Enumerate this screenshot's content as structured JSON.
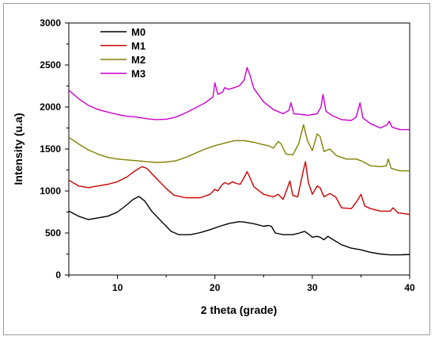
{
  "chart_data": {
    "type": "line",
    "xlabel": "2 theta (grade)",
    "ylabel": "Intensity (u.a)",
    "xlim": [
      5,
      40
    ],
    "ylim": [
      0,
      3000
    ],
    "x_ticks": [
      10,
      20,
      30,
      40
    ],
    "y_ticks": [
      0,
      500,
      1000,
      1500,
      2000,
      2500,
      3000
    ],
    "x_tick_labels": [
      "10",
      "20",
      "30",
      "40"
    ],
    "y_tick_labels": [
      "0",
      "500",
      "1000",
      "1500",
      "2000",
      "2500",
      "3000"
    ],
    "grid": false,
    "legend": "top-left",
    "series": [
      {
        "name": "M0",
        "color": "#000000",
        "points": [
          [
            5,
            760
          ],
          [
            6,
            700
          ],
          [
            7,
            660
          ],
          [
            8,
            680
          ],
          [
            9,
            700
          ],
          [
            10,
            750
          ],
          [
            11,
            840
          ],
          [
            11.6,
            900
          ],
          [
            12.2,
            935
          ],
          [
            12.8,
            880
          ],
          [
            13.5,
            760
          ],
          [
            14.5,
            640
          ],
          [
            15.5,
            520
          ],
          [
            16.3,
            480
          ],
          [
            17.5,
            480
          ],
          [
            18.5,
            505
          ],
          [
            19.5,
            540
          ],
          [
            20.5,
            580
          ],
          [
            21.5,
            615
          ],
          [
            22.5,
            635
          ],
          [
            23,
            630
          ],
          [
            24,
            610
          ],
          [
            25,
            580
          ],
          [
            25.5,
            590
          ],
          [
            25.8,
            580
          ],
          [
            26.2,
            500
          ],
          [
            27,
            480
          ],
          [
            28,
            480
          ],
          [
            28.7,
            500
          ],
          [
            29.2,
            520
          ],
          [
            29.6,
            490
          ],
          [
            30,
            450
          ],
          [
            30.5,
            460
          ],
          [
            30.8,
            450
          ],
          [
            31.2,
            420
          ],
          [
            31.6,
            460
          ],
          [
            32,
            430
          ],
          [
            33,
            360
          ],
          [
            34,
            320
          ],
          [
            35,
            300
          ],
          [
            36,
            270
          ],
          [
            37,
            250
          ],
          [
            38,
            240
          ],
          [
            39,
            240
          ],
          [
            40,
            245
          ]
        ]
      },
      {
        "name": "M1",
        "color": "#cc0000",
        "points": [
          [
            5,
            1130
          ],
          [
            6,
            1060
          ],
          [
            7,
            1040
          ],
          [
            8,
            1060
          ],
          [
            9,
            1080
          ],
          [
            10,
            1110
          ],
          [
            11,
            1170
          ],
          [
            11.8,
            1240
          ],
          [
            12.5,
            1290
          ],
          [
            13,
            1270
          ],
          [
            14,
            1150
          ],
          [
            15,
            1030
          ],
          [
            15.8,
            950
          ],
          [
            17,
            920
          ],
          [
            18.5,
            920
          ],
          [
            19.5,
            960
          ],
          [
            20,
            1020
          ],
          [
            20.3,
            1000
          ],
          [
            20.7,
            1070
          ],
          [
            21,
            1100
          ],
          [
            21.4,
            1080
          ],
          [
            21.8,
            1110
          ],
          [
            22.2,
            1090
          ],
          [
            22.6,
            1080
          ],
          [
            23,
            1160
          ],
          [
            23.3,
            1230
          ],
          [
            23.6,
            1160
          ],
          [
            24,
            1050
          ],
          [
            25,
            960
          ],
          [
            26,
            930
          ],
          [
            26.5,
            960
          ],
          [
            27,
            900
          ],
          [
            27.4,
            1020
          ],
          [
            27.7,
            1120
          ],
          [
            28,
            950
          ],
          [
            28.5,
            930
          ],
          [
            29,
            1200
          ],
          [
            29.3,
            1350
          ],
          [
            29.6,
            1100
          ],
          [
            30,
            960
          ],
          [
            30.5,
            1060
          ],
          [
            30.8,
            1040
          ],
          [
            31.2,
            930
          ],
          [
            31.8,
            970
          ],
          [
            32.4,
            930
          ],
          [
            33,
            800
          ],
          [
            34,
            790
          ],
          [
            34.6,
            880
          ],
          [
            35,
            960
          ],
          [
            35.4,
            820
          ],
          [
            36,
            790
          ],
          [
            37,
            760
          ],
          [
            38,
            760
          ],
          [
            38.3,
            800
          ],
          [
            38.8,
            740
          ],
          [
            39.5,
            730
          ],
          [
            40,
            720
          ]
        ]
      },
      {
        "name": "M2",
        "color": "#808000",
        "points": [
          [
            5,
            1640
          ],
          [
            6,
            1560
          ],
          [
            7,
            1490
          ],
          [
            8,
            1440
          ],
          [
            9,
            1400
          ],
          [
            10,
            1380
          ],
          [
            11,
            1370
          ],
          [
            12,
            1360
          ],
          [
            13,
            1350
          ],
          [
            14,
            1340
          ],
          [
            15,
            1345
          ],
          [
            16,
            1360
          ],
          [
            17,
            1400
          ],
          [
            18,
            1450
          ],
          [
            19,
            1500
          ],
          [
            20,
            1540
          ],
          [
            21,
            1570
          ],
          [
            22,
            1600
          ],
          [
            23,
            1600
          ],
          [
            24,
            1580
          ],
          [
            25,
            1550
          ],
          [
            25.5,
            1540
          ],
          [
            26,
            1510
          ],
          [
            26.5,
            1590
          ],
          [
            26.8,
            1560
          ],
          [
            27.3,
            1440
          ],
          [
            28,
            1430
          ],
          [
            28.6,
            1560
          ],
          [
            29.1,
            1790
          ],
          [
            29.5,
            1600
          ],
          [
            30,
            1480
          ],
          [
            30.5,
            1680
          ],
          [
            30.8,
            1650
          ],
          [
            31.2,
            1470
          ],
          [
            31.8,
            1500
          ],
          [
            32.5,
            1420
          ],
          [
            33,
            1400
          ],
          [
            33.5,
            1380
          ],
          [
            34.5,
            1380
          ],
          [
            35,
            1360
          ],
          [
            36,
            1300
          ],
          [
            37,
            1290
          ],
          [
            37.6,
            1300
          ],
          [
            37.8,
            1380
          ],
          [
            38.1,
            1270
          ],
          [
            39,
            1240
          ],
          [
            40,
            1240
          ]
        ]
      },
      {
        "name": "M3",
        "color": "#cc00cc",
        "points": [
          [
            5,
            2200
          ],
          [
            6,
            2100
          ],
          [
            7,
            2020
          ],
          [
            8,
            1970
          ],
          [
            9,
            1940
          ],
          [
            10,
            1910
          ],
          [
            11,
            1890
          ],
          [
            12,
            1880
          ],
          [
            13,
            1860
          ],
          [
            14,
            1850
          ],
          [
            15,
            1855
          ],
          [
            16,
            1880
          ],
          [
            17,
            1930
          ],
          [
            18,
            1990
          ],
          [
            19,
            2050
          ],
          [
            19.8,
            2120
          ],
          [
            20,
            2290
          ],
          [
            20.3,
            2150
          ],
          [
            20.8,
            2180
          ],
          [
            21,
            2230
          ],
          [
            21.4,
            2210
          ],
          [
            22,
            2230
          ],
          [
            22.5,
            2250
          ],
          [
            23,
            2320
          ],
          [
            23.3,
            2470
          ],
          [
            23.6,
            2380
          ],
          [
            24,
            2220
          ],
          [
            25,
            2060
          ],
          [
            26,
            1970
          ],
          [
            27,
            1920
          ],
          [
            27.6,
            1960
          ],
          [
            27.8,
            2050
          ],
          [
            28.1,
            1920
          ],
          [
            29,
            1910
          ],
          [
            29.5,
            1900
          ],
          [
            30.5,
            1920
          ],
          [
            30.9,
            2000
          ],
          [
            31.1,
            2150
          ],
          [
            31.4,
            1950
          ],
          [
            32,
            1900
          ],
          [
            33,
            1850
          ],
          [
            34,
            1840
          ],
          [
            34.5,
            1880
          ],
          [
            34.9,
            2050
          ],
          [
            35.2,
            1870
          ],
          [
            36,
            1800
          ],
          [
            37,
            1750
          ],
          [
            37.7,
            1790
          ],
          [
            37.9,
            1830
          ],
          [
            38.2,
            1760
          ],
          [
            39,
            1730
          ],
          [
            40,
            1730
          ]
        ]
      }
    ]
  }
}
